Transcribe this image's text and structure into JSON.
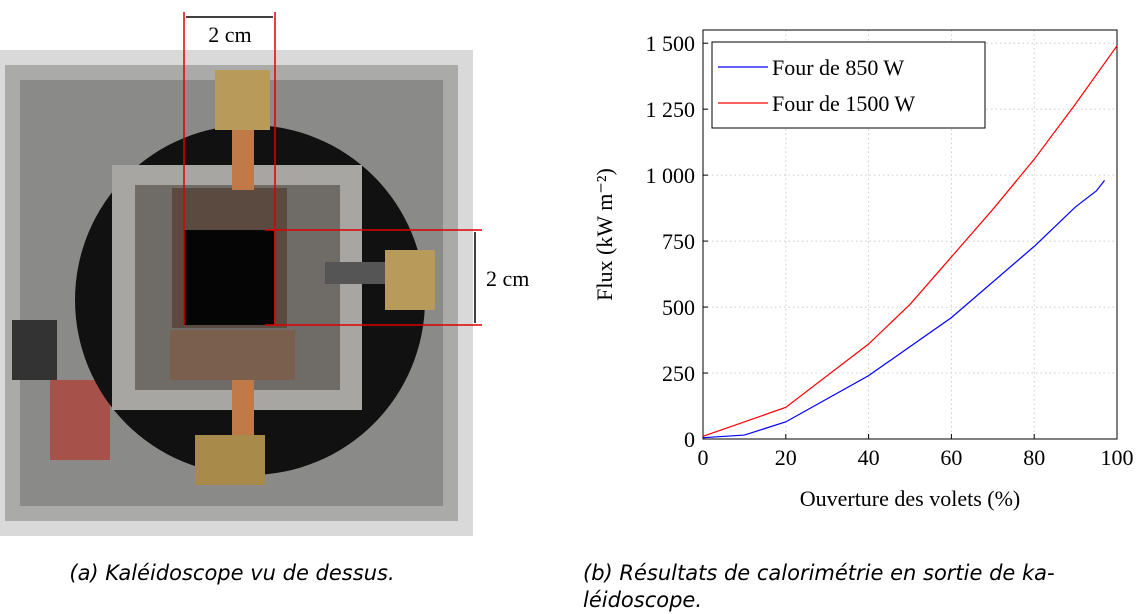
{
  "photo": {
    "labels": [
      "2 cm",
      "2 cm"
    ]
  },
  "chart_data": {
    "type": "line",
    "x_label": "Ouverture des volets (%)",
    "y_label": "Flux (kW m⁻²)",
    "xlim": [
      0,
      100
    ],
    "xticks": [
      0,
      20,
      40,
      60,
      80,
      100
    ],
    "ylim": [
      0,
      1550
    ],
    "yticks": [
      0,
      250,
      500,
      750,
      {
        "value": 1000,
        "label": "1 000"
      },
      {
        "value": 1250,
        "label": "1 250"
      },
      {
        "value": 1500,
        "label": "1 500"
      }
    ],
    "grid": true,
    "legend": "upper left",
    "series": [
      {
        "name": "Four de 850 W",
        "color": "#0000ff",
        "x": [
          0,
          10,
          20,
          40,
          60,
          80,
          90,
          95,
          97
        ],
        "values": [
          5,
          15,
          65,
          240,
          460,
          730,
          880,
          940,
          980
        ]
      },
      {
        "name": "Four de 1500 W",
        "color": "#ff0000",
        "x": [
          0,
          20,
          40,
          50,
          60,
          70,
          80,
          90,
          100
        ],
        "values": [
          10,
          120,
          360,
          510,
          690,
          870,
          1060,
          1270,
          1490
        ]
      }
    ]
  },
  "captions": {
    "a": "(a) Kaléidoscope vu de dessus.",
    "b": [
      "(b) Résultats de calorimétrie en sortie de ka-",
      "léidoscope."
    ]
  }
}
